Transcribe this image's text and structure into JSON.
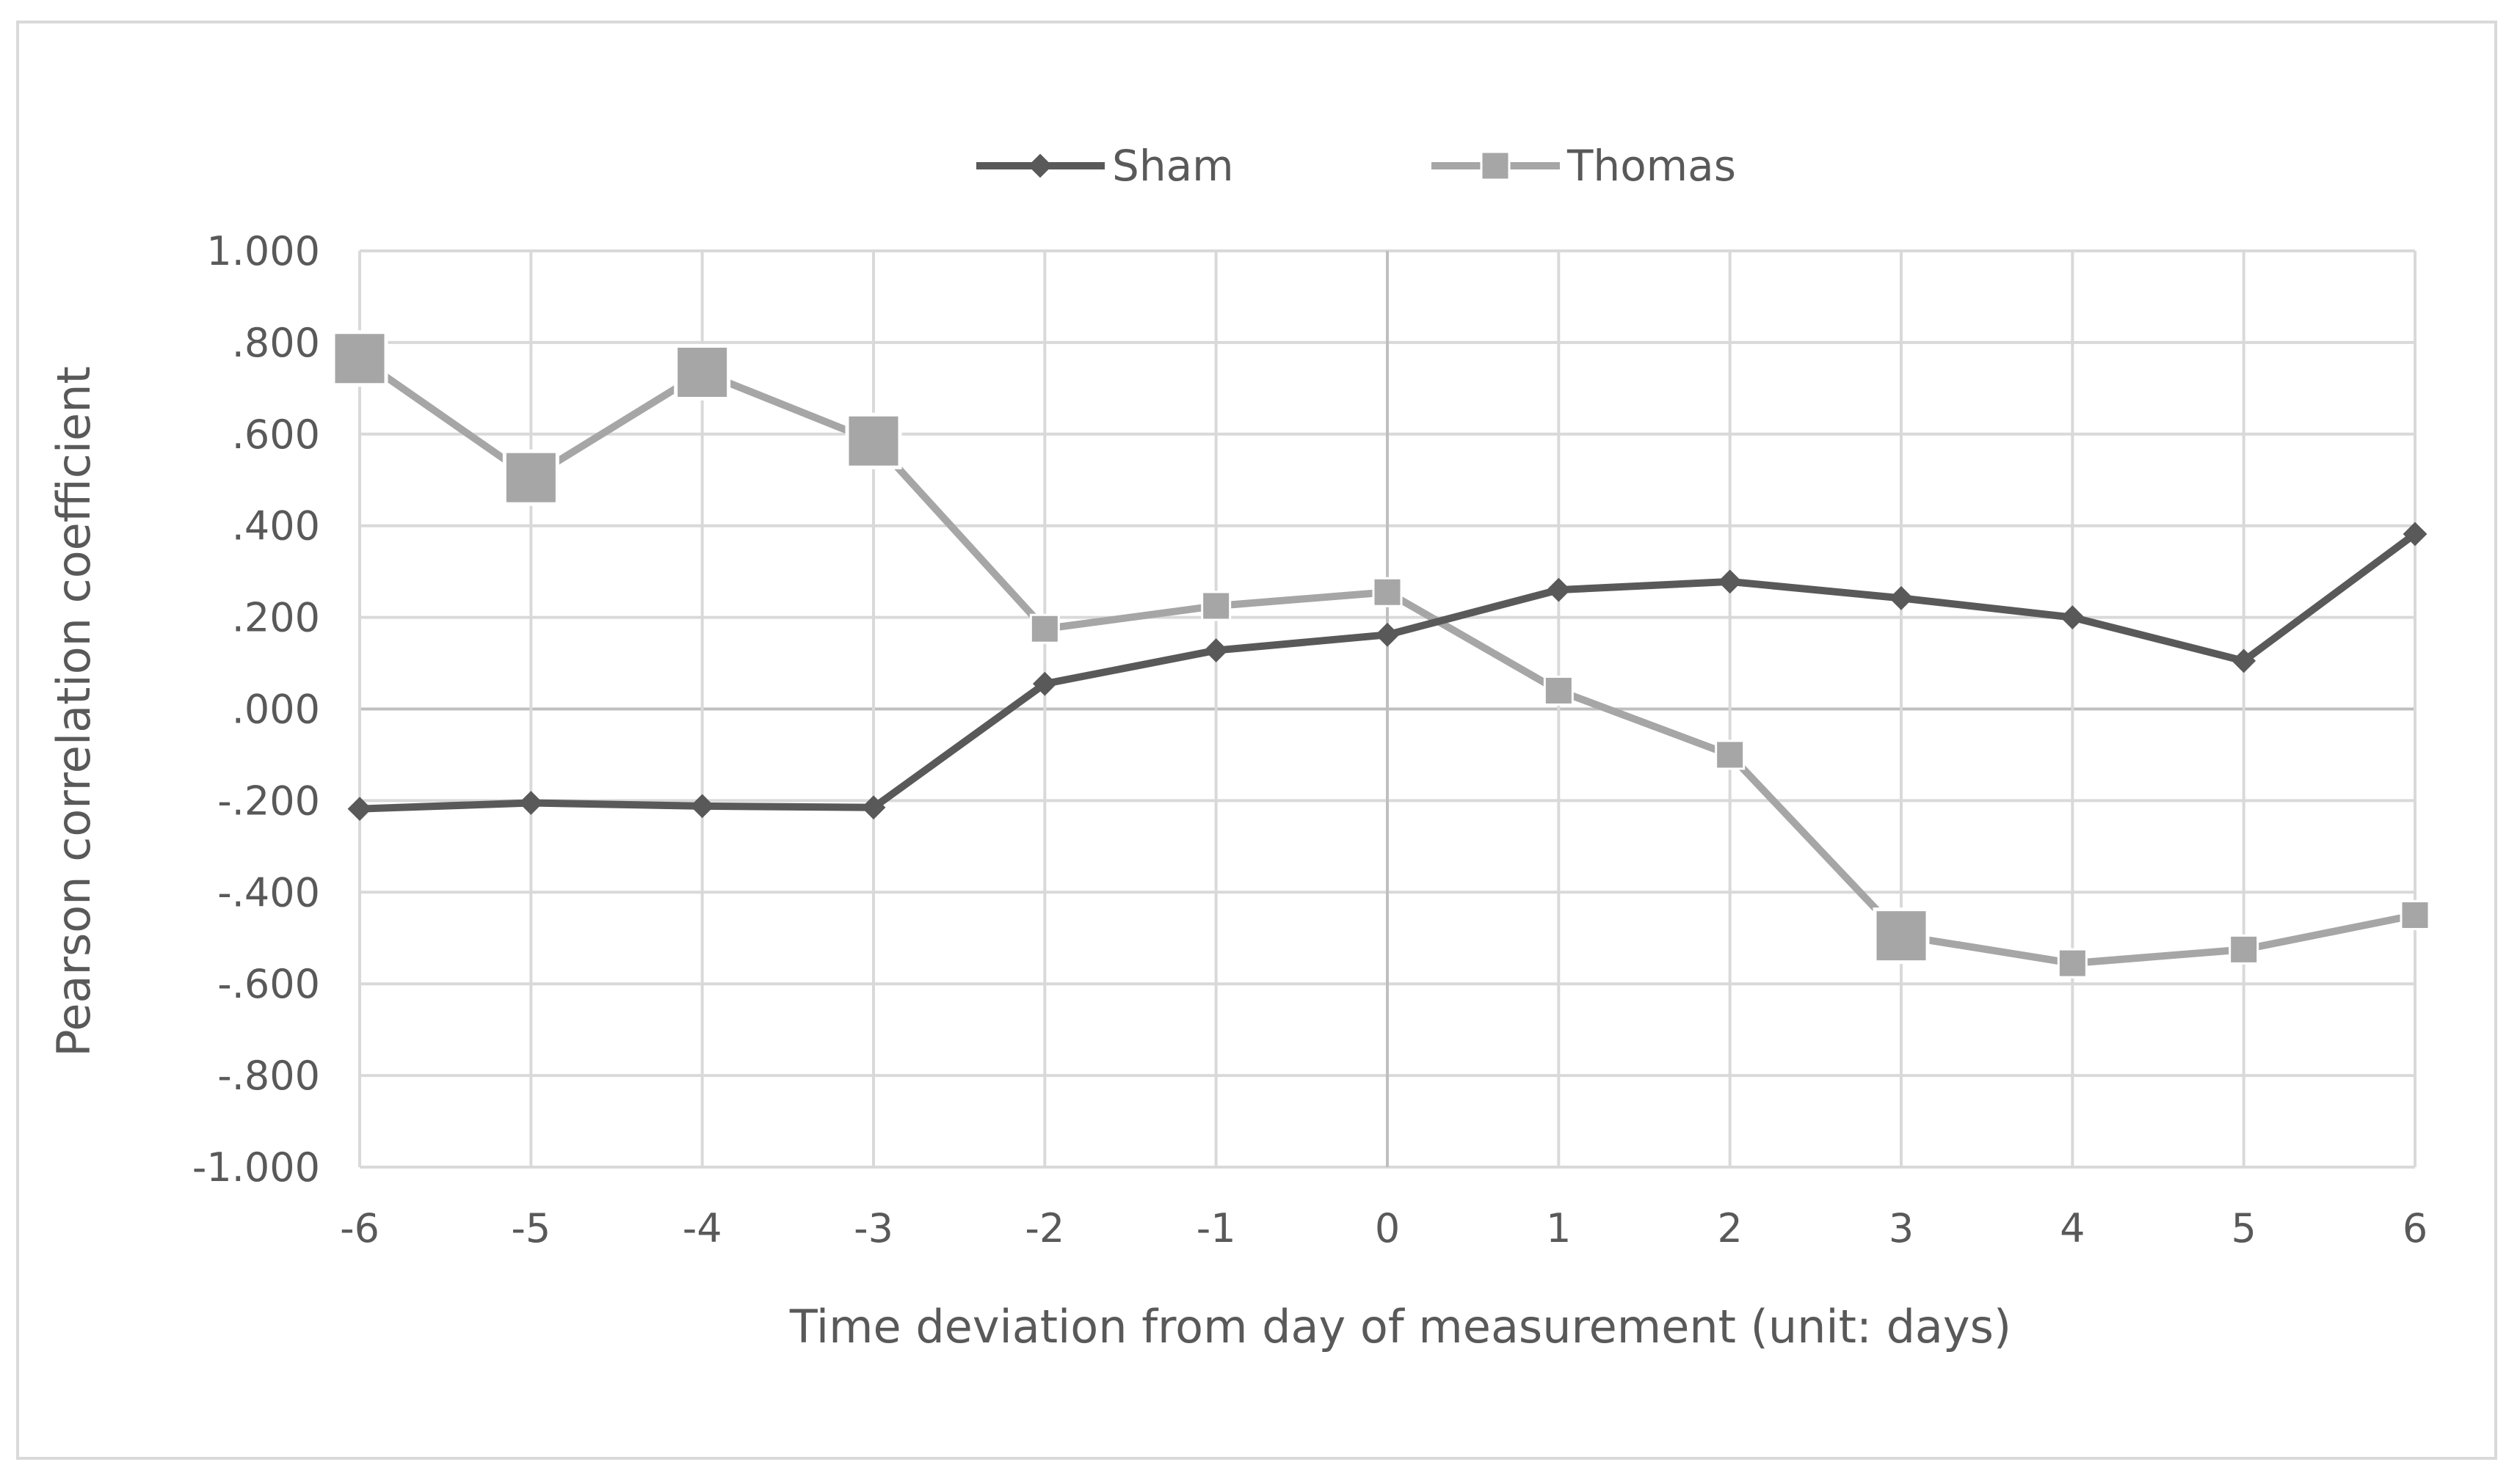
{
  "chart_data": {
    "type": "line",
    "title": "",
    "xlabel": "Time deviation from day of measurement (unit: days)",
    "ylabel": "Pearson correlation coefficient",
    "x": [
      -6,
      -5,
      -4,
      -3,
      -2,
      -1,
      0,
      1,
      2,
      3,
      4,
      5,
      6
    ],
    "x_tick_labels": [
      "-6",
      "-5",
      "-4",
      "-3",
      "-2",
      "-1",
      "0",
      "1",
      "2",
      "3",
      "4",
      "5",
      "6"
    ],
    "xlim": [
      -6,
      6
    ],
    "ylim": [
      -1.0,
      1.0
    ],
    "y_ticks": [
      1.0,
      0.8,
      0.6,
      0.4,
      0.2,
      0.0,
      -0.2,
      -0.4,
      -0.6,
      -0.8,
      -1.0
    ],
    "y_tick_labels": [
      "1.000",
      ".800",
      ".600",
      ".400",
      ".200",
      ".000",
      "-.200",
      "-.400",
      "-.600",
      "-.800",
      "-1.000"
    ],
    "grid": true,
    "legend_position": "top-center",
    "series": [
      {
        "name": "Sham",
        "color": "#595959",
        "marker": "diamond",
        "values": [
          -0.218,
          -0.205,
          -0.212,
          -0.215,
          0.055,
          0.128,
          0.162,
          0.26,
          0.278,
          0.242,
          0.2,
          0.105,
          0.382
        ]
      },
      {
        "name": "Thomas",
        "color": "#a6a6a6",
        "marker": "square",
        "values": [
          0.765,
          0.505,
          0.735,
          0.585,
          0.175,
          0.225,
          0.255,
          0.04,
          -0.1,
          -0.495,
          -0.555,
          -0.525,
          -0.45
        ],
        "highlighted_x": [
          -6,
          -5,
          -4,
          -3,
          3
        ]
      }
    ]
  }
}
